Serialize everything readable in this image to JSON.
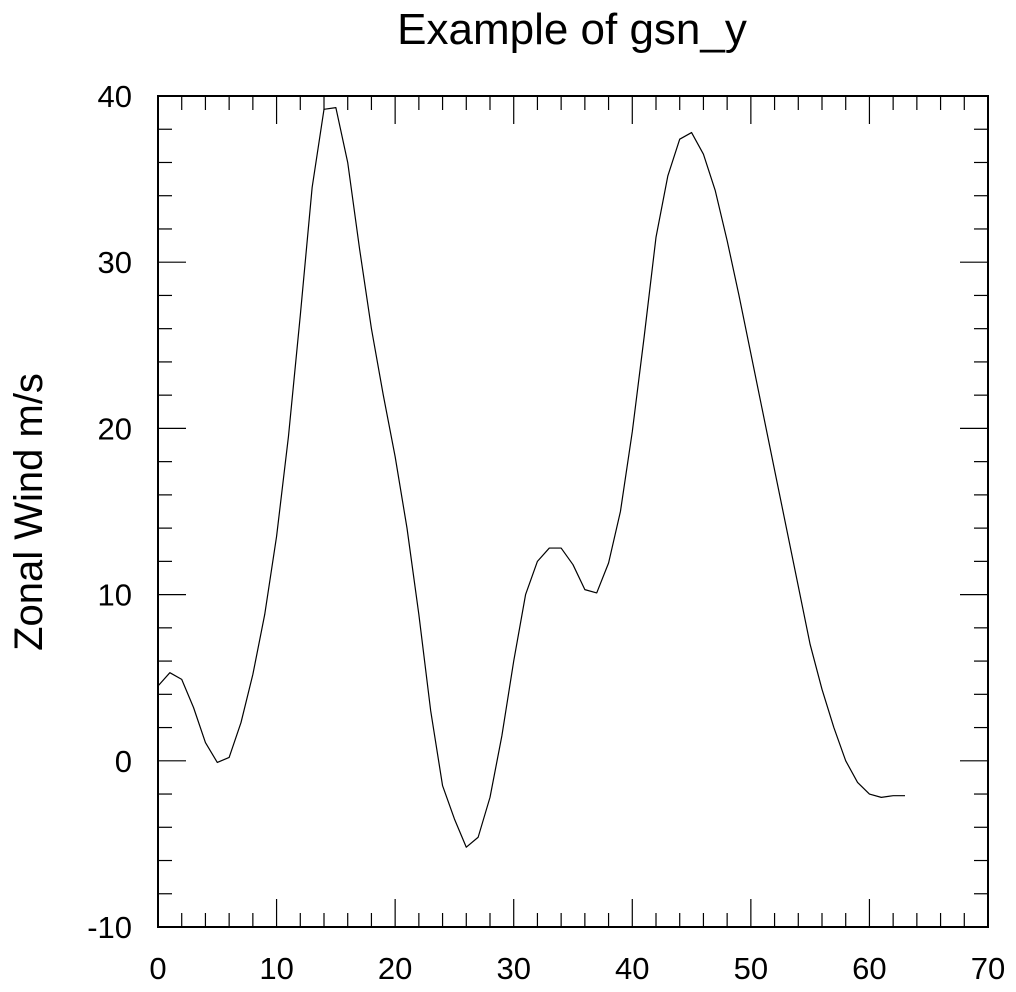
{
  "chart_data": {
    "type": "line",
    "title": "Example of gsn_y",
    "xlabel": "",
    "ylabel": "Zonal Wind m/s",
    "xlim": [
      0,
      70
    ],
    "ylim": [
      -10,
      40
    ],
    "x_ticks": [
      0,
      10,
      20,
      30,
      40,
      50,
      60,
      70
    ],
    "y_ticks": [
      -10,
      0,
      10,
      20,
      30,
      40
    ],
    "grid": false,
    "line_color": "#000000",
    "series": [
      {
        "x": [
          0,
          1,
          2,
          3,
          4,
          5,
          6,
          7,
          8,
          9,
          10,
          11,
          12,
          13,
          14,
          15,
          16,
          17,
          18,
          19,
          20,
          21,
          22,
          23,
          24,
          25,
          26,
          27,
          28,
          29,
          30,
          31,
          32,
          33,
          34,
          35,
          36,
          37,
          38,
          39,
          40,
          41,
          42,
          43,
          44,
          45,
          46,
          47,
          48,
          49,
          50,
          51,
          52,
          53,
          54,
          55,
          56,
          57,
          58,
          59,
          60,
          61,
          62,
          63
        ],
        "values": [
          4.5,
          5.3,
          4.9,
          3.2,
          1.1,
          -0.1,
          0.2,
          2.3,
          5.2,
          8.8,
          13.5,
          19.5,
          26.8,
          34.5,
          39.2,
          39.3,
          36.0,
          30.8,
          26.0,
          22.0,
          18.3,
          14.0,
          8.8,
          3.0,
          -1.5,
          -3.5,
          -5.2,
          -4.6,
          -2.2,
          1.5,
          6.0,
          10.0,
          12.0,
          12.8,
          12.8,
          11.8,
          10.3,
          10.1,
          11.9,
          15.0,
          19.8,
          25.5,
          31.5,
          35.2,
          37.4,
          37.8,
          36.5,
          34.3,
          31.3,
          28.0,
          24.5,
          21.0,
          17.5,
          14.0,
          10.5,
          7.0,
          4.3,
          2.0,
          0.0,
          -1.3,
          -2.0,
          -2.2,
          -2.1,
          -2.1
        ]
      }
    ]
  }
}
